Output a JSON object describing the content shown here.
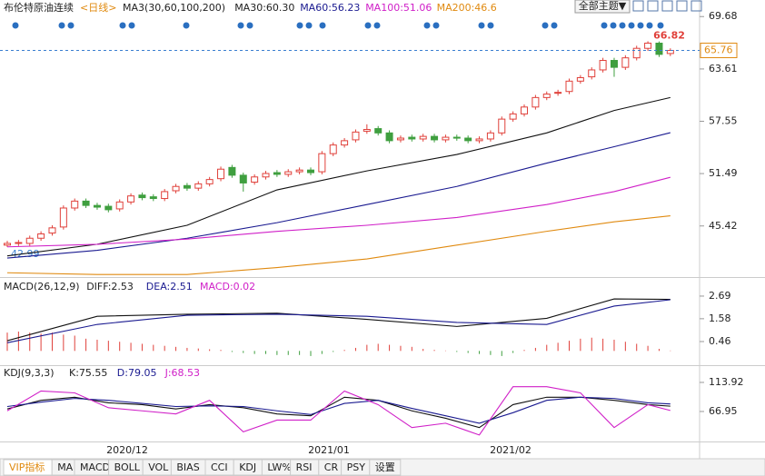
{
  "chart_data": [
    {
      "type": "candlestick",
      "title": "布伦特原油连续",
      "period": "<日线>",
      "header": [
        {
          "text": "MA3(30,60,100,200)",
          "color": "#222"
        },
        {
          "text": "MA30:60.30",
          "color": "#222"
        },
        {
          "text": "MA60:56.23",
          "color": "#1a1a90"
        },
        {
          "text": "MA100:51.06",
          "color": "#d020c8"
        },
        {
          "text": "MA200:46.6",
          "color": "#e08a10"
        }
      ],
      "button": "全部主题▼",
      "ylim": [
        39.5,
        71.6
      ],
      "yticks": [
        69.68,
        63.61,
        57.55,
        51.49,
        45.42
      ],
      "up_color": "#e0403a",
      "down_color": "#3f9f3f",
      "open": [
        43.2,
        43.4,
        43.4,
        44.0,
        44.6,
        45.3,
        47.5,
        48.3,
        47.8,
        47.7,
        47.4,
        48.2,
        49.0,
        48.8,
        48.6,
        49.5,
        50.1,
        49.8,
        50.3,
        50.9,
        52.2,
        51.3,
        50.5,
        51.1,
        51.6,
        51.4,
        51.7,
        51.9,
        51.7,
        53.8,
        54.8,
        55.4,
        56.4,
        56.7,
        56.2,
        55.4,
        55.7,
        55.5,
        55.8,
        55.4,
        55.7,
        55.6,
        55.3,
        55.5,
        56.2,
        57.8,
        58.4,
        59.2,
        60.3,
        60.8,
        61.0,
        62.2,
        62.7,
        63.5,
        64.6,
        63.8,
        64.9,
        66.0,
        66.6,
        65.4
      ],
      "high": [
        43.7,
        43.8,
        44.3,
        44.8,
        45.5,
        47.8,
        48.6,
        48.6,
        48.1,
        48.0,
        48.5,
        49.2,
        49.3,
        49.1,
        49.7,
        50.3,
        50.4,
        50.6,
        51.1,
        52.3,
        52.5,
        51.6,
        51.4,
        51.8,
        51.9,
        52.0,
        52.2,
        52.2,
        54.1,
        55.1,
        55.6,
        56.6,
        57.2,
        57.0,
        56.5,
        55.9,
        56.0,
        56.1,
        56.1,
        56.0,
        56.0,
        55.9,
        55.8,
        56.5,
        58.1,
        58.7,
        59.5,
        60.6,
        61.0,
        61.2,
        62.5,
        62.9,
        63.8,
        64.9,
        64.9,
        65.2,
        66.3,
        66.82,
        66.8,
        66.0
      ],
      "low": [
        42.99,
        43.1,
        43.1,
        43.7,
        44.3,
        45.0,
        47.2,
        47.5,
        47.3,
        47.0,
        47.1,
        47.9,
        48.4,
        48.3,
        48.3,
        49.2,
        49.5,
        49.5,
        50.0,
        50.6,
        51.0,
        49.4,
        50.2,
        50.8,
        51.1,
        51.1,
        51.4,
        51.3,
        51.4,
        53.5,
        54.5,
        55.1,
        56.1,
        55.9,
        55.0,
        55.1,
        55.2,
        55.2,
        55.1,
        55.1,
        55.3,
        55.0,
        55.0,
        55.2,
        55.9,
        57.5,
        58.1,
        58.9,
        60.0,
        60.5,
        60.7,
        61.9,
        62.4,
        63.2,
        62.7,
        63.5,
        64.6,
        65.7,
        65.0,
        65.1
      ],
      "close": [
        43.4,
        43.5,
        44.0,
        44.5,
        45.2,
        47.5,
        48.3,
        47.8,
        47.6,
        47.3,
        48.2,
        48.9,
        48.7,
        48.6,
        49.4,
        50.0,
        49.8,
        50.3,
        50.8,
        52.0,
        51.3,
        50.4,
        51.1,
        51.5,
        51.4,
        51.7,
        51.9,
        51.6,
        53.8,
        54.8,
        55.3,
        56.3,
        56.6,
        56.2,
        55.3,
        55.6,
        55.5,
        55.8,
        55.4,
        55.7,
        55.6,
        55.3,
        55.5,
        56.2,
        57.8,
        58.4,
        59.2,
        60.3,
        60.7,
        60.9,
        62.2,
        62.6,
        63.5,
        64.6,
        63.8,
        64.9,
        66.0,
        66.6,
        65.3,
        65.76
      ],
      "series": [
        {
          "name": "MA30",
          "color": "#111",
          "x": [
            0,
            8,
            16,
            24,
            32,
            40,
            48,
            54,
            59
          ],
          "values": [
            41.95,
            43.3,
            45.5,
            49.6,
            51.8,
            53.7,
            56.2,
            58.8,
            60.3
          ]
        },
        {
          "name": "MA60",
          "color": "#1a1a90",
          "x": [
            0,
            8,
            16,
            24,
            32,
            40,
            48,
            54,
            59
          ],
          "values": [
            41.7,
            42.6,
            44.0,
            45.8,
            47.9,
            50.0,
            52.7,
            54.6,
            56.23
          ]
        },
        {
          "name": "MA100",
          "color": "#d020c8",
          "x": [
            0,
            8,
            16,
            24,
            32,
            40,
            48,
            54,
            59
          ],
          "values": [
            43.0,
            43.3,
            43.9,
            44.8,
            45.5,
            46.4,
            47.9,
            49.4,
            51.06
          ]
        },
        {
          "name": "MA200",
          "color": "#e08a10",
          "x": [
            0,
            8,
            16,
            24,
            32,
            40,
            48,
            54,
            59
          ],
          "values": [
            40.0,
            39.8,
            39.8,
            40.6,
            41.6,
            43.2,
            44.8,
            45.9,
            46.6
          ]
        }
      ]
    },
    {
      "type": "macd",
      "header": [
        {
          "text": "MACD(26,12,9)",
          "color": "#222"
        },
        {
          "text": "DIFF:2.53",
          "color": "#222"
        },
        {
          "text": "DEA:2.51",
          "color": "#1a1a90"
        },
        {
          "text": "MACD:0.02",
          "color": "#d020c8"
        }
      ],
      "ylim": [
        -0.61,
        3.49
      ],
      "yticks": [
        2.69,
        1.58,
        0.46
      ],
      "up_color": "#e0403a",
      "down_color": "#3f9f3f",
      "histogram": [
        0.9,
        0.95,
        0.9,
        0.85,
        0.9,
        0.8,
        0.75,
        0.6,
        0.55,
        0.5,
        0.45,
        0.4,
        0.35,
        0.3,
        0.25,
        0.2,
        0.15,
        0.12,
        0.08,
        0.05,
        -0.05,
        -0.1,
        -0.15,
        -0.15,
        -0.2,
        -0.2,
        -0.2,
        -0.25,
        -0.15,
        -0.05,
        0.05,
        0.15,
        0.3,
        0.35,
        0.3,
        0.25,
        0.2,
        0.1,
        0.05,
        0.02,
        -0.05,
        -0.1,
        -0.15,
        -0.2,
        -0.25,
        -0.1,
        0.05,
        0.15,
        0.3,
        0.4,
        0.5,
        0.6,
        0.65,
        0.6,
        0.55,
        0.45,
        0.35,
        0.25,
        0.1,
        0.02
      ],
      "series": [
        {
          "name": "DIFF",
          "color": "#111",
          "x": [
            0,
            8,
            16,
            24,
            32,
            40,
            48,
            54,
            59
          ],
          "values": [
            0.5,
            1.7,
            1.8,
            1.85,
            1.55,
            1.2,
            1.6,
            2.55,
            2.53
          ]
        },
        {
          "name": "DEA",
          "color": "#1a1a90",
          "x": [
            0,
            8,
            16,
            24,
            32,
            40,
            48,
            54,
            59
          ],
          "values": [
            0.4,
            1.3,
            1.75,
            1.8,
            1.7,
            1.4,
            1.3,
            2.2,
            2.51
          ]
        }
      ]
    },
    {
      "type": "line",
      "header": [
        {
          "text": "KDJ(9,3,3)",
          "color": "#222"
        },
        {
          "text": "K:75.55",
          "color": "#222"
        },
        {
          "text": "D:79.05",
          "color": "#1a1a90"
        },
        {
          "text": "J:68.53",
          "color": "#d020c8"
        }
      ],
      "ylim": [
        -9.4,
        140.3
      ],
      "yticks": [
        113.92,
        66.95
      ],
      "series": [
        {
          "name": "K",
          "color": "#111",
          "x": [
            0,
            3,
            6,
            9,
            12,
            15,
            18,
            21,
            24,
            27,
            30,
            33,
            36,
            39,
            42,
            45,
            48,
            51,
            54,
            57,
            59
          ],
          "values": [
            71,
            85,
            90,
            81,
            78,
            71,
            78,
            73,
            63,
            60,
            90,
            85,
            68,
            56,
            41,
            78,
            90,
            90,
            85,
            78,
            75.55
          ]
        },
        {
          "name": "D",
          "color": "#1a1a90",
          "x": [
            0,
            3,
            6,
            9,
            12,
            15,
            18,
            21,
            24,
            27,
            30,
            33,
            36,
            39,
            42,
            45,
            48,
            51,
            54,
            57,
            59
          ],
          "values": [
            75,
            82,
            88,
            85,
            80,
            75,
            76,
            75,
            68,
            62,
            80,
            85,
            72,
            60,
            48,
            65,
            85,
            90,
            88,
            81,
            79.05
          ]
        },
        {
          "name": "J",
          "color": "#d020c8",
          "x": [
            0,
            3,
            6,
            9,
            12,
            15,
            18,
            21,
            24,
            27,
            30,
            33,
            36,
            39,
            42,
            45,
            48,
            51,
            54,
            57,
            59
          ],
          "values": [
            68,
            100,
            97,
            73,
            68,
            63,
            85,
            34,
            53,
            53,
            100,
            78,
            41,
            48,
            29,
            107,
            107,
            97,
            41,
            78,
            68.53
          ]
        }
      ]
    }
  ],
  "x_labels": [
    "2020/12",
    "2021/01",
    "2021/02"
  ],
  "tabs": [
    "VIP指标",
    "MA",
    "MACD",
    "BOLL",
    "VOL",
    "BIAS",
    "CCI",
    "KDJ",
    "LW%",
    "RSI",
    "CR",
    "PSY",
    "设置"
  ]
}
